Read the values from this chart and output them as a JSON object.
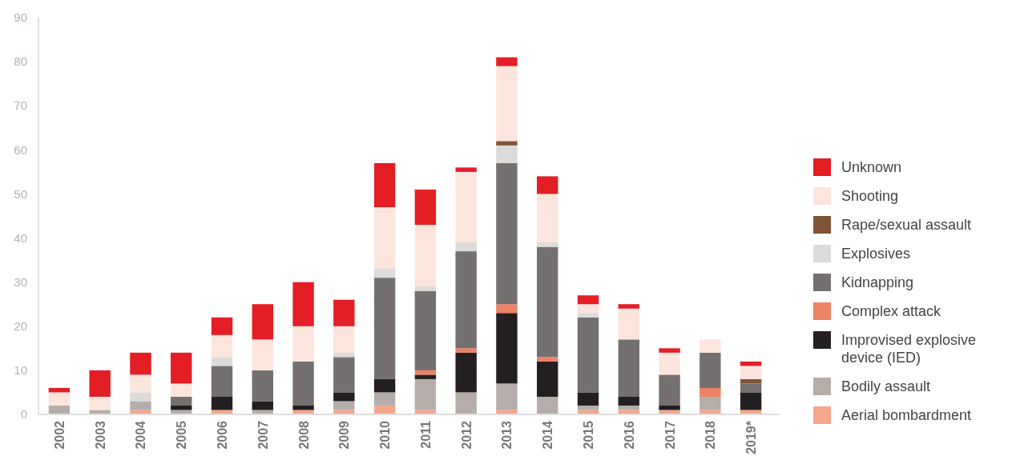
{
  "chart_data": {
    "type": "bar",
    "stacked": true,
    "categories": [
      "2002",
      "2003",
      "2004",
      "2005",
      "2006",
      "2007",
      "2008",
      "2009",
      "2010",
      "2011",
      "2012",
      "2013",
      "2014",
      "2015",
      "2016",
      "2017",
      "2018",
      "2019*"
    ],
    "ylim": [
      0,
      90
    ],
    "yticks": [
      0,
      10,
      20,
      30,
      40,
      50,
      60,
      70,
      80,
      90
    ],
    "grid": false,
    "legend": "right",
    "series": [
      {
        "name": "Aerial bombardment",
        "color": "#f5a68c",
        "values": [
          0,
          0,
          1,
          0,
          1,
          0,
          1,
          1,
          2,
          1,
          0,
          1,
          0,
          1,
          1,
          1,
          1,
          1
        ]
      },
      {
        "name": "Bodily assault",
        "color": "#b5ada9",
        "values": [
          2,
          1,
          2,
          1,
          0,
          1,
          0,
          2,
          3,
          7,
          5,
          6,
          4,
          1,
          1,
          0,
          3,
          0
        ]
      },
      {
        "name": "Improvised explosive device (IED)",
        "color": "#231f20",
        "values": [
          0,
          0,
          0,
          1,
          3,
          2,
          1,
          2,
          3,
          1,
          9,
          16,
          8,
          3,
          2,
          1,
          0,
          4
        ]
      },
      {
        "name": "Complex attack",
        "color": "#ee8264",
        "values": [
          0,
          0,
          0,
          0,
          0,
          0,
          0,
          0,
          0,
          1,
          1,
          2,
          1,
          0,
          0,
          0,
          2,
          0
        ]
      },
      {
        "name": "Kidnapping",
        "color": "#73706f",
        "values": [
          0,
          0,
          0,
          2,
          7,
          7,
          10,
          8,
          23,
          18,
          22,
          32,
          25,
          17,
          13,
          7,
          8,
          2
        ]
      },
      {
        "name": "Explosives",
        "color": "#dcdbd9",
        "values": [
          0,
          0,
          2,
          0,
          2,
          0,
          0,
          1,
          2,
          1,
          2,
          4,
          1,
          1,
          0,
          0,
          0,
          0
        ]
      },
      {
        "name": "Rape/sexual assault",
        "color": "#7f5535",
        "values": [
          0,
          0,
          0,
          0,
          0,
          0,
          0,
          0,
          0,
          0,
          0,
          1,
          0,
          0,
          0,
          0,
          0,
          1
        ]
      },
      {
        "name": "Shooting",
        "color": "#fbe5dc",
        "values": [
          3,
          3,
          4,
          3,
          5,
          7,
          8,
          6,
          14,
          14,
          16,
          17,
          11,
          2,
          7,
          5,
          3,
          3
        ]
      },
      {
        "name": "Unknown",
        "color": "#e41e25",
        "values": [
          1,
          6,
          5,
          7,
          4,
          8,
          10,
          6,
          10,
          8,
          1,
          2,
          4,
          2,
          1,
          1,
          0,
          1
        ]
      }
    ]
  }
}
